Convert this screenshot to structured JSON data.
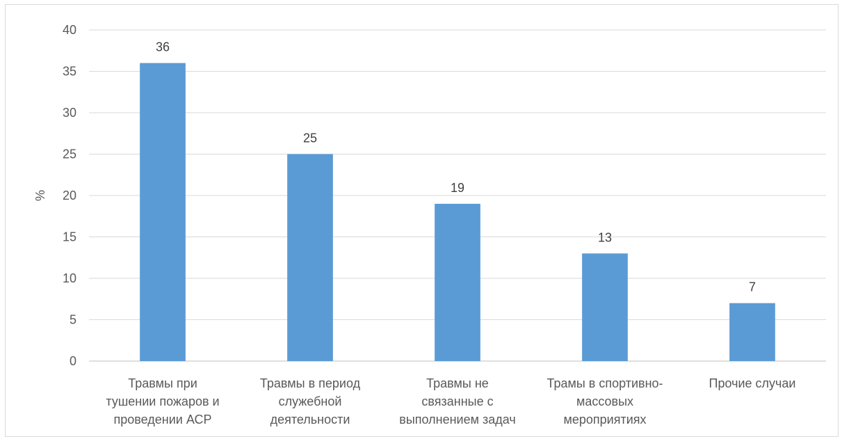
{
  "chart_data": {
    "type": "bar",
    "title": "",
    "xlabel": "",
    "ylabel": "%",
    "ylim": [
      0,
      40
    ],
    "yticks": [
      0,
      5,
      10,
      15,
      20,
      25,
      30,
      35,
      40
    ],
    "grid": true,
    "legend": "none",
    "categories": [
      [
        "Травмы при",
        "тушении пожаров и",
        "проведении АСР"
      ],
      [
        "Травмы в период",
        "служебной",
        "деятельности"
      ],
      [
        "Травмы не",
        "связанные с",
        "выполнением  задач"
      ],
      [
        "Трамы в спортивно-",
        "массовых",
        "мероприятиях"
      ],
      [
        "Прочие случаи"
      ]
    ],
    "values": [
      36,
      25,
      19,
      13,
      7
    ],
    "colors": {
      "bar": "#5b9bd5",
      "grid": "#d9d9d9"
    }
  }
}
